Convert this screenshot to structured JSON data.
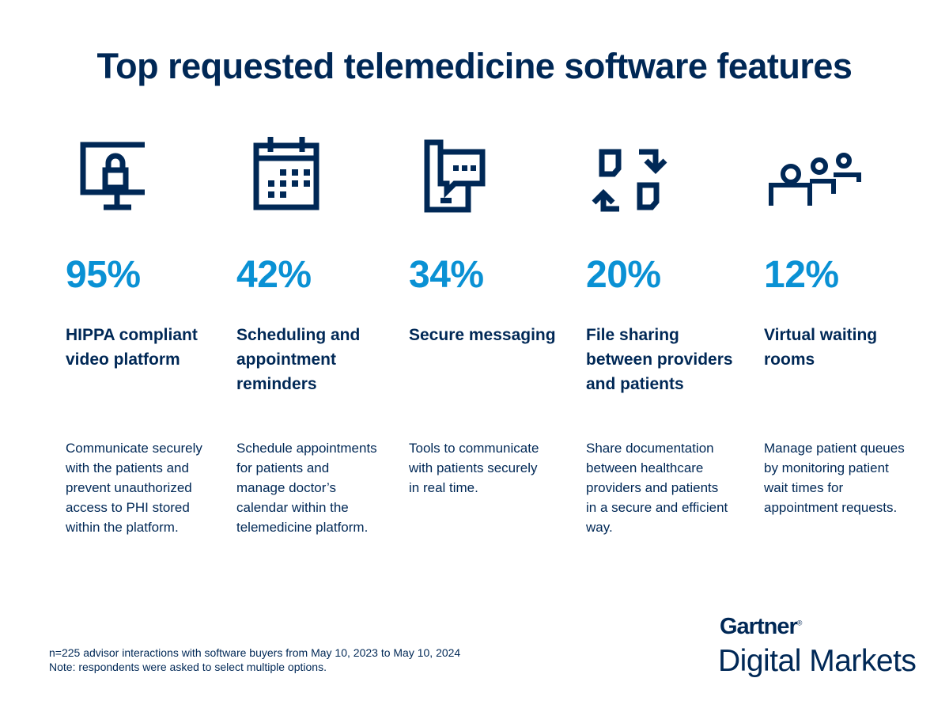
{
  "title": "Top requested telemedicine software features",
  "colors": {
    "navy": "#002856",
    "accent": "#0a91d4"
  },
  "features": [
    {
      "icon": "monitor-lock-icon",
      "percent": "95%",
      "title": "HIPPA compliant video platform",
      "description": "Communicate securely with the patients and prevent unauthorized access to PHI stored within the platform."
    },
    {
      "icon": "calendar-icon",
      "percent": "42%",
      "title": "Scheduling and appointment reminders",
      "description": "Schedule appointments for patients and manage doctor’s calendar within the telemedicine platform."
    },
    {
      "icon": "phone-chat-icon",
      "percent": "34%",
      "title": "Secure messaging",
      "description": "Tools to communicate with patients securely in real time."
    },
    {
      "icon": "file-exchange-icon",
      "percent": "20%",
      "title": "File sharing between providers and patients",
      "description": "Share documentation between healthcare providers and patients in a secure and efficient way."
    },
    {
      "icon": "waiting-room-people-icon",
      "percent": "12%",
      "title": "Virtual waiting rooms",
      "description": "Manage patient queues by monitoring patient wait times  for  appointment requests."
    }
  ],
  "footnote": {
    "line1": "n=225 advisor interactions with software buyers from May 10, 2023 to May 10, 2024",
    "line2": "Note: respondents were asked to select multiple options."
  },
  "logo": {
    "brand": "Gartner",
    "registered": "®",
    "product": "Digital Markets"
  }
}
